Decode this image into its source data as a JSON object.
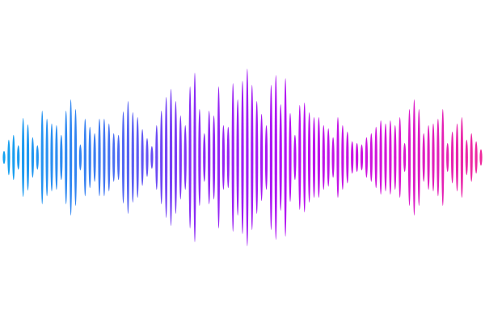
{
  "waveform": {
    "gradient_colors": [
      "#12a4f0",
      "#3b7cf2",
      "#8a2bf5",
      "#b40ff2",
      "#d414d8",
      "#f02a9a"
    ],
    "amplitudes": [
      8,
      22,
      28,
      15,
      49,
      41,
      25,
      15,
      58,
      48,
      42,
      40,
      28,
      58,
      72,
      60,
      16,
      48,
      38,
      30,
      48,
      48,
      42,
      30,
      28,
      57,
      70,
      56,
      50,
      35,
      24,
      14,
      40,
      58,
      75,
      85,
      70,
      52,
      40,
      88,
      105,
      60,
      30,
      58,
      52,
      88,
      40,
      38,
      92,
      72,
      95,
      110,
      90,
      70,
      54,
      40,
      90,
      102,
      66,
      98,
      55,
      28,
      65,
      68,
      56,
      50,
      50,
      40,
      36,
      25,
      50,
      40,
      32,
      20,
      18,
      16,
      25,
      30,
      38,
      46,
      42,
      46,
      40,
      50,
      18,
      60,
      72,
      60,
      30,
      40,
      42,
      48,
      60,
      18,
      32,
      42,
      50,
      22,
      30,
      20,
      10
    ]
  }
}
